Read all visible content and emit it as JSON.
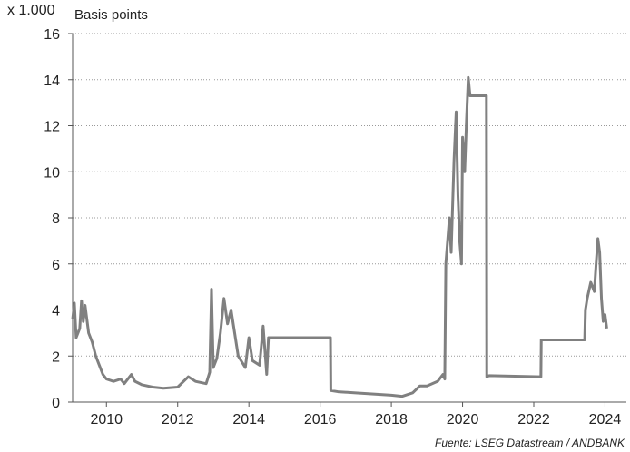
{
  "chart_data": {
    "type": "line",
    "unit_label": "x 1.000",
    "y_label": "Basis points",
    "source": "Fuente: LSEG Datastream / ANDBANK",
    "color": "#808080",
    "grid": true,
    "xlim": [
      2009.05,
      2024.6
    ],
    "xticks": [
      2010,
      2012,
      2014,
      2016,
      2018,
      2020,
      2022,
      2024
    ],
    "ylim": [
      0,
      16
    ],
    "yticks": [
      0,
      2,
      4,
      6,
      8,
      10,
      12,
      14,
      16
    ],
    "x": [
      2009.05,
      2009.1,
      2009.15,
      2009.25,
      2009.3,
      2009.35,
      2009.4,
      2009.5,
      2009.6,
      2009.7,
      2009.8,
      2009.9,
      2010.0,
      2010.2,
      2010.4,
      2010.5,
      2010.7,
      2010.8,
      2011.0,
      2011.3,
      2011.6,
      2012.0,
      2012.3,
      2012.5,
      2012.8,
      2012.9,
      2012.95,
      2013.0,
      2013.1,
      2013.2,
      2013.3,
      2013.4,
      2013.5,
      2013.6,
      2013.7,
      2013.9,
      2014.0,
      2014.1,
      2014.3,
      2014.4,
      2014.5,
      2014.55,
      2016.29,
      2016.3,
      2016.5,
      2017.0,
      2017.5,
      2018.0,
      2018.3,
      2018.6,
      2018.8,
      2019.0,
      2019.3,
      2019.45,
      2019.5,
      2019.53,
      2019.63,
      2019.68,
      2019.76,
      2019.82,
      2019.87,
      2019.92,
      2019.97,
      2020.0,
      2020.06,
      2020.11,
      2020.16,
      2020.21,
      2020.67,
      2020.68,
      2020.75,
      2022.2,
      2022.21,
      2023.43,
      2023.45,
      2023.5,
      2023.6,
      2023.7,
      2023.75,
      2023.8,
      2023.85,
      2023.9,
      2023.95,
      2024.0,
      2024.05
    ],
    "values": [
      3.6,
      4.3,
      2.8,
      3.2,
      4.4,
      3.5,
      4.2,
      3.0,
      2.6,
      2.0,
      1.6,
      1.2,
      1.0,
      0.9,
      1.0,
      0.8,
      1.2,
      0.9,
      0.75,
      0.65,
      0.6,
      0.65,
      1.1,
      0.9,
      0.8,
      1.3,
      4.9,
      1.5,
      1.9,
      3.0,
      4.5,
      3.4,
      4.0,
      3.0,
      2.0,
      1.5,
      2.8,
      1.8,
      1.6,
      3.3,
      1.2,
      2.8,
      2.8,
      0.5,
      0.45,
      0.4,
      0.35,
      0.3,
      0.25,
      0.4,
      0.7,
      0.7,
      0.9,
      1.2,
      1.0,
      6.0,
      8.0,
      6.5,
      10.5,
      12.6,
      9.0,
      7.0,
      6.0,
      11.5,
      10.0,
      12.2,
      14.1,
      13.3,
      13.3,
      1.1,
      1.15,
      1.1,
      2.7,
      2.7,
      4.0,
      4.5,
      5.2,
      4.8,
      6.0,
      7.1,
      6.5,
      4.5,
      3.5,
      3.8,
      3.2
    ]
  }
}
